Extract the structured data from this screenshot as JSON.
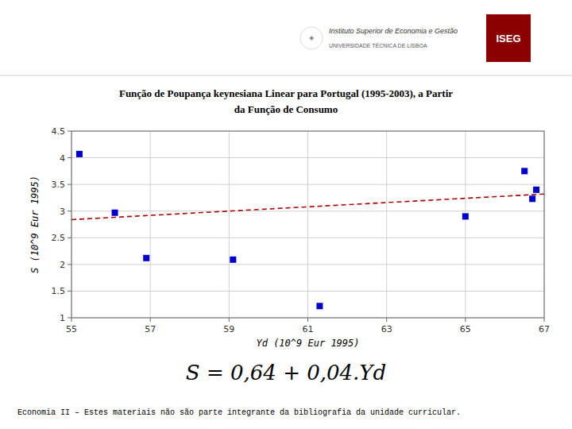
{
  "chart_data": {
    "type": "scatter",
    "title": "Função de Poupança keynesiana Linear para Portugal (1995-2003), a Partir",
    "subtitle": "da Função de Consumo",
    "x_label": "Yd (10^9 Eur  1995)",
    "y_label": "S (10^9 Eur 1995)",
    "series": [
      {
        "type": "scatter",
        "color": "#0000CC",
        "marker": "square",
        "x": [
          55.2,
          56.1,
          56.9,
          59.1,
          61.3,
          65.0,
          66.5,
          66.7,
          66.8
        ],
        "values": [
          4.07,
          2.97,
          2.12,
          2.09,
          1.22,
          2.9,
          3.75,
          3.23,
          3.4
        ]
      },
      {
        "type": "line",
        "color": "#AA0000",
        "line_style": "dashed",
        "x": [
          55,
          67
        ],
        "values": [
          2.84,
          3.32
        ]
      }
    ],
    "xlim": [
      55,
      67
    ],
    "ylim": [
      1.0,
      4.5
    ],
    "xticks": [
      55,
      57,
      59,
      61,
      63,
      65,
      67
    ],
    "yticks": [
      1,
      1.5,
      2,
      2.5,
      3,
      3.5,
      4,
      4.5
    ],
    "grid": true,
    "annotations": [
      "Instituto Superior de Economia e Gestão",
      "UNIVERSIDADE TÉCNICA DE LISBOA",
      "ISEG",
      "✦",
      "S = 0,64 + 0,04.Yd",
      "Economia II – Estes materiais não são parte integrante da bibliografia da unidade curricular."
    ]
  }
}
